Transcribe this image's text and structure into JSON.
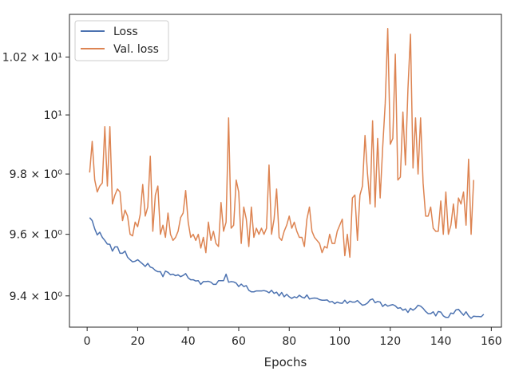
{
  "chart_data": {
    "type": "line",
    "xlabel": "Epochs",
    "ylabel": "",
    "xlim": [
      -7,
      164
    ],
    "ylim": [
      9.3,
      10.35
    ],
    "yscale": "log",
    "grid": false,
    "legend_position": "top-left",
    "x_ticks": [
      {
        "value": 0,
        "label": "0"
      },
      {
        "value": 20,
        "label": "20"
      },
      {
        "value": 40,
        "label": "40"
      },
      {
        "value": 60,
        "label": "60"
      },
      {
        "value": 80,
        "label": "80"
      },
      {
        "value": 100,
        "label": "100"
      },
      {
        "value": 120,
        "label": "120"
      },
      {
        "value": 140,
        "label": "140"
      },
      {
        "value": 160,
        "label": "160"
      }
    ],
    "y_ticks": [
      {
        "value": 9.4,
        "label": "9.4 × 10⁰"
      },
      {
        "value": 9.6,
        "label": "9.6 × 10⁰"
      },
      {
        "value": 9.8,
        "label": "9.8 × 10⁰"
      },
      {
        "value": 10.0,
        "label": "10¹"
      },
      {
        "value": 10.2,
        "label": "1.02 × 10¹"
      }
    ],
    "x_start": 1,
    "series": [
      {
        "name": "Loss",
        "color": "#4c72b0",
        "values": [
          9.655,
          9.645,
          9.618,
          9.598,
          9.607,
          9.59,
          9.58,
          9.568,
          9.567,
          9.545,
          9.559,
          9.559,
          9.538,
          9.538,
          9.545,
          9.525,
          9.517,
          9.51,
          9.512,
          9.517,
          9.51,
          9.503,
          9.495,
          9.505,
          9.493,
          9.49,
          9.482,
          9.478,
          9.478,
          9.462,
          9.48,
          9.476,
          9.468,
          9.47,
          9.465,
          9.468,
          9.462,
          9.466,
          9.472,
          9.458,
          9.452,
          9.452,
          9.448,
          9.449,
          9.437,
          9.446,
          9.446,
          9.447,
          9.444,
          9.437,
          9.437,
          9.449,
          9.449,
          9.449,
          9.47,
          9.444,
          9.446,
          9.445,
          9.441,
          9.43,
          9.438,
          9.43,
          9.433,
          9.418,
          9.413,
          9.413,
          9.416,
          9.416,
          9.416,
          9.417,
          9.415,
          9.41,
          9.418,
          9.408,
          9.412,
          9.4,
          9.411,
          9.397,
          9.405,
          9.397,
          9.392,
          9.397,
          9.394,
          9.402,
          9.396,
          9.393,
          9.403,
          9.39,
          9.392,
          9.393,
          9.392,
          9.388,
          9.386,
          9.386,
          9.387,
          9.38,
          9.382,
          9.375,
          9.38,
          9.377,
          9.376,
          9.386,
          9.376,
          9.383,
          9.38,
          9.38,
          9.385,
          9.377,
          9.37,
          9.372,
          9.377,
          9.387,
          9.39,
          9.378,
          9.382,
          9.38,
          9.366,
          9.373,
          9.367,
          9.37,
          9.372,
          9.368,
          9.36,
          9.362,
          9.354,
          9.358,
          9.347,
          9.36,
          9.354,
          9.36,
          9.37,
          9.367,
          9.36,
          9.35,
          9.343,
          9.343,
          9.349,
          9.336,
          9.35,
          9.348,
          9.336,
          9.331,
          9.331,
          9.345,
          9.343,
          9.355,
          9.357,
          9.347,
          9.338,
          9.349,
          9.336,
          9.328,
          9.335,
          9.334,
          9.334,
          9.333,
          9.341
        ]
      },
      {
        "name": "Val. loss",
        "color": "#dd8452",
        "values": [
          9.805,
          9.91,
          9.78,
          9.74,
          9.76,
          9.77,
          9.96,
          9.76,
          9.96,
          9.7,
          9.73,
          9.75,
          9.74,
          9.645,
          9.68,
          9.66,
          9.6,
          9.595,
          9.64,
          9.625,
          9.665,
          9.765,
          9.66,
          9.69,
          9.86,
          9.61,
          9.73,
          9.76,
          9.6,
          9.63,
          9.59,
          9.67,
          9.6,
          9.58,
          9.59,
          9.61,
          9.655,
          9.67,
          9.745,
          9.64,
          9.59,
          9.6,
          9.58,
          9.6,
          9.555,
          9.59,
          9.54,
          9.64,
          9.58,
          9.61,
          9.57,
          9.56,
          9.705,
          9.61,
          9.64,
          9.99,
          9.62,
          9.63,
          9.78,
          9.74,
          9.57,
          9.69,
          9.65,
          9.56,
          9.69,
          9.59,
          9.62,
          9.6,
          9.62,
          9.6,
          9.62,
          9.83,
          9.6,
          9.65,
          9.75,
          9.59,
          9.58,
          9.61,
          9.63,
          9.66,
          9.62,
          9.64,
          9.61,
          9.59,
          9.59,
          9.56,
          9.65,
          9.69,
          9.61,
          9.59,
          9.58,
          9.57,
          9.54,
          9.56,
          9.555,
          9.6,
          9.57,
          9.57,
          9.61,
          9.63,
          9.65,
          9.53,
          9.6,
          9.525,
          9.72,
          9.73,
          9.58,
          9.73,
          9.76,
          9.93,
          9.8,
          9.7,
          9.98,
          9.69,
          9.92,
          9.72,
          9.89,
          10.04,
          10.3,
          9.9,
          9.92,
          10.21,
          9.78,
          9.79,
          10.01,
          9.83,
          10.09,
          10.28,
          9.82,
          9.99,
          9.8,
          9.99,
          9.77,
          9.66,
          9.66,
          9.69,
          9.62,
          9.61,
          9.61,
          9.71,
          9.6,
          9.74,
          9.6,
          9.63,
          9.7,
          9.62,
          9.72,
          9.7,
          9.74,
          9.63,
          9.85,
          9.6,
          9.78
        ]
      }
    ]
  }
}
